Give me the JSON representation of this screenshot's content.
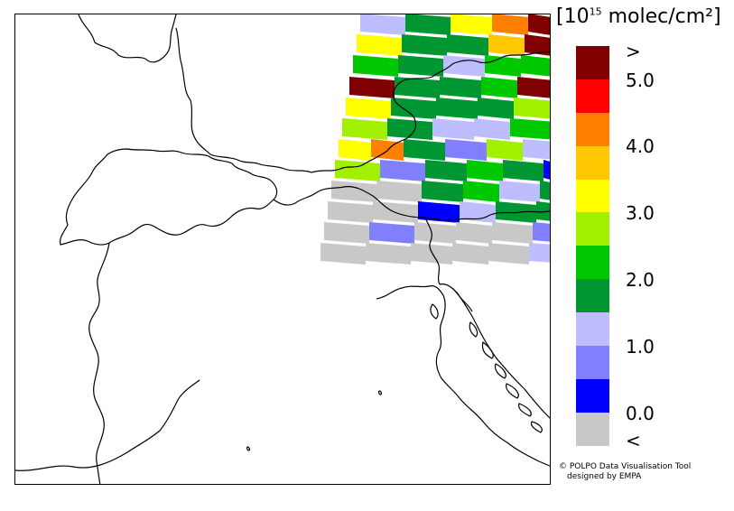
{
  "legend": {
    "unit_prefix": "[10",
    "unit_exponent": "15",
    "unit_suffix": " molec/cm²]",
    "labels": [
      ">",
      "5.0",
      "4.0",
      "3.0",
      "2.0",
      "1.0",
      "0.0",
      "<"
    ],
    "colors": [
      "#800000",
      "#ff0000",
      "#ff8000",
      "#ffc800",
      "#ffff00",
      "#a0f000",
      "#00c800",
      "#009632",
      "#bebeff",
      "#8080ff",
      "#0000ff",
      "#c8c8c8"
    ]
  },
  "credit": {
    "line1": "© POLPO Data Visualisation Tool",
    "line2": "designed by EMPA"
  },
  "map": {
    "border_color": "#000000",
    "swath_colors": {
      "darkred": "#800000",
      "red": "#ff0000",
      "orange": "#ff8000",
      "gold": "#ffc800",
      "yellow": "#ffff00",
      "lime": "#a0f000",
      "green": "#00c800",
      "darkgreen": "#009632",
      "lavender": "#bebeff",
      "periwinkle": "#8080ff",
      "blue": "#0000ff",
      "gray": "#c8c8c8"
    }
  }
}
